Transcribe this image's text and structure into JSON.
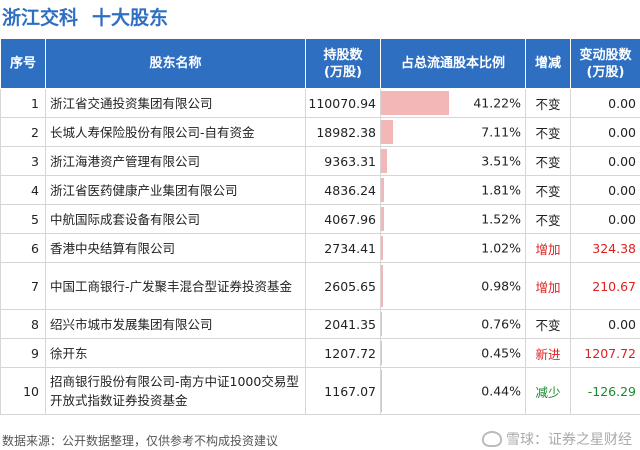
{
  "title": {
    "company": "浙江交科",
    "section": "十大股东"
  },
  "table": {
    "headers": [
      "序号",
      "股东名称",
      "持股数\n(万股)",
      "占总流通股本比例",
      "增减",
      "变动股数\n(万股)"
    ],
    "rows": [
      {
        "idx": "1",
        "name": "浙江省交通投资集团有限公司",
        "shares": "110070.94",
        "ratio": "41.22%",
        "ratio_value": 41.22,
        "change": "不变",
        "change_type": "same",
        "delta": "0.00"
      },
      {
        "idx": "2",
        "name": "长城人寿保险股份有限公司-自有资金",
        "shares": "18982.38",
        "ratio": "7.11%",
        "ratio_value": 7.11,
        "change": "不变",
        "change_type": "same",
        "delta": "0.00"
      },
      {
        "idx": "3",
        "name": "浙江海港资产管理有限公司",
        "shares": "9363.31",
        "ratio": "3.51%",
        "ratio_value": 3.51,
        "change": "不变",
        "change_type": "same",
        "delta": "0.00"
      },
      {
        "idx": "4",
        "name": "浙江省医药健康产业集团有限公司",
        "shares": "4836.24",
        "ratio": "1.81%",
        "ratio_value": 1.81,
        "change": "不变",
        "change_type": "same",
        "delta": "0.00"
      },
      {
        "idx": "5",
        "name": "中航国际成套设备有限公司",
        "shares": "4067.96",
        "ratio": "1.52%",
        "ratio_value": 1.52,
        "change": "不变",
        "change_type": "same",
        "delta": "0.00"
      },
      {
        "idx": "6",
        "name": "香港中央结算有限公司",
        "shares": "2734.41",
        "ratio": "1.02%",
        "ratio_value": 1.02,
        "change": "增加",
        "change_type": "up",
        "delta": "324.38"
      },
      {
        "idx": "7",
        "name": "中国工商银行-广发聚丰混合型证券投资基金",
        "shares": "2605.65",
        "ratio": "0.98%",
        "ratio_value": 0.98,
        "change": "增加",
        "change_type": "up",
        "delta": "210.67",
        "tall": true
      },
      {
        "idx": "8",
        "name": "绍兴市城市发展集团有限公司",
        "shares": "2041.35",
        "ratio": "0.76%",
        "ratio_value": 0.76,
        "change": "不变",
        "change_type": "same",
        "delta": "0.00"
      },
      {
        "idx": "9",
        "name": "徐开东",
        "shares": "1207.72",
        "ratio": "0.45%",
        "ratio_value": 0.45,
        "change": "新进",
        "change_type": "new",
        "delta": "1207.72"
      },
      {
        "idx": "10",
        "name": "招商银行股份有限公司-南方中证1000交易型开放式指数证券投资基金",
        "shares": "1167.07",
        "ratio": "0.44%",
        "ratio_value": 0.44,
        "change": "减少",
        "change_type": "down",
        "delta": "-126.29",
        "tall": true
      }
    ]
  },
  "footer": {
    "source": "数据来源：公开数据整理，仅供参考不构成投资建议",
    "brand": "雪球：证券之星财经"
  },
  "colors": {
    "header_bg": "#2e6fc2",
    "bar": "#f3b7b7",
    "up": "#e02020",
    "down": "#1a8a2e"
  }
}
